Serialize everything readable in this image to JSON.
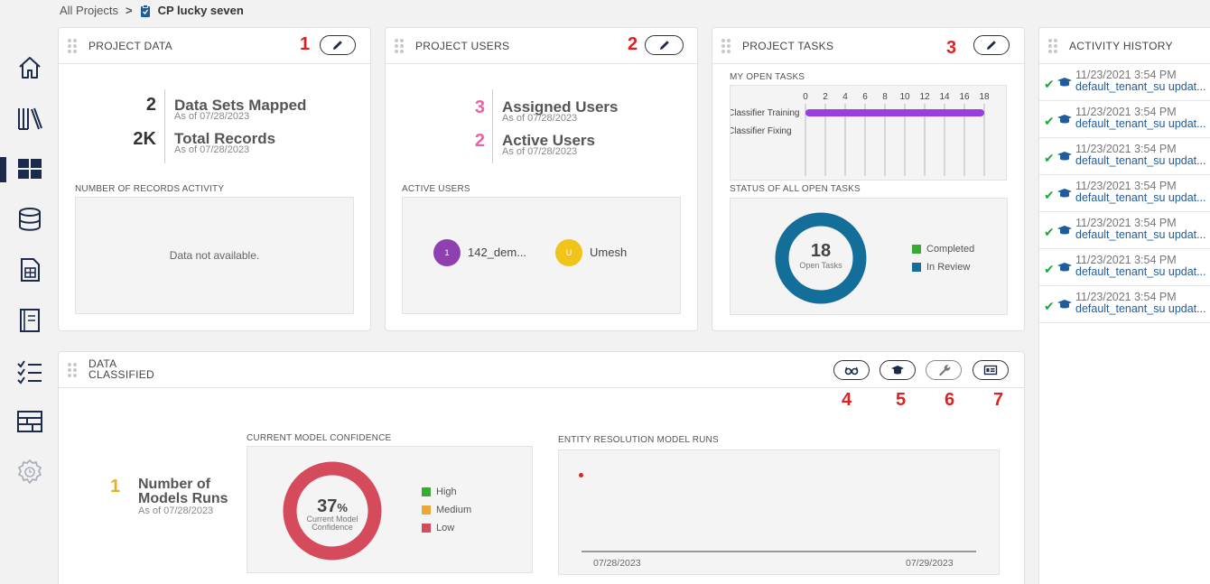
{
  "breadcrumb": {
    "parent": "All Projects",
    "separator": ">",
    "current": "CP lucky seven"
  },
  "project_data": {
    "title": "PROJECT DATA",
    "annotation": "1",
    "stats": [
      {
        "value": "2",
        "label": "Data Sets Mapped",
        "as_of": "As of 07/28/2023"
      },
      {
        "value": "2K",
        "label": "Total Records",
        "as_of": "As of 07/28/2023"
      }
    ],
    "activity_label": "NUMBER OF RECORDS ACTIVITY",
    "empty_text": "Data not available."
  },
  "project_users": {
    "title": "PROJECT USERS",
    "annotation": "2",
    "stats": [
      {
        "value": "3",
        "label": "Assigned Users",
        "as_of": "As of 07/28/2023"
      },
      {
        "value": "2",
        "label": "Active Users",
        "as_of": "As of 07/28/2023"
      }
    ],
    "active_label": "ACTIVE USERS",
    "users": [
      {
        "initial": "1",
        "name": "142_dem...",
        "color": "#8e3fb0"
      },
      {
        "initial": "U",
        "name": "Umesh",
        "color": "#f0c419"
      }
    ]
  },
  "project_tasks": {
    "title": "PROJECT TASKS",
    "annotation": "3",
    "my_open_label": "MY OPEN TASKS",
    "ticks": [
      "0",
      "2",
      "4",
      "6",
      "8",
      "10",
      "12",
      "14",
      "16",
      "18"
    ],
    "rows": [
      "Classifier Training",
      "Classifier Fixing"
    ],
    "training_value": 18,
    "axis_max": 18,
    "status_label": "STATUS OF ALL OPEN TASKS",
    "open_count": "18",
    "open_label": "Open Tasks",
    "legend": [
      {
        "label": "Completed",
        "color": "#3aaa35"
      },
      {
        "label": "In Review",
        "color": "#136f9a"
      }
    ]
  },
  "activity_history": {
    "title": "ACTIVITY HISTORY",
    "items": [
      {
        "time": "11/23/2021 3:54 PM",
        "text": "default_tenant_su updat..."
      },
      {
        "time": "11/23/2021 3:54 PM",
        "text": "default_tenant_su updat..."
      },
      {
        "time": "11/23/2021 3:54 PM",
        "text": "default_tenant_su updat..."
      },
      {
        "time": "11/23/2021 3:54 PM",
        "text": "default_tenant_su updat..."
      },
      {
        "time": "11/23/2021 3:54 PM",
        "text": "default_tenant_su updat..."
      },
      {
        "time": "11/23/2021 3:54 PM",
        "text": "default_tenant_su updat..."
      },
      {
        "time": "11/23/2021 3:54 PM",
        "text": "default_tenant_su updat..."
      }
    ]
  },
  "data_classified": {
    "title_line1": "DATA",
    "title_line2": "CLASSIFIED",
    "annotations": [
      "4",
      "5",
      "6",
      "7"
    ],
    "models_value": "1",
    "models_label_line1": "Number of",
    "models_label_line2": "Models Runs",
    "models_as_of": "As of 07/28/2023",
    "confidence_label": "CURRENT MODEL CONFIDENCE",
    "confidence_value": "37",
    "confidence_unit": "%",
    "confidence_sub_line1": "Current Model",
    "confidence_sub_line2": "Confidence",
    "confidence_legend": [
      {
        "label": "High",
        "color": "#3aaa35"
      },
      {
        "label": "Medium",
        "color": "#eda63a"
      },
      {
        "label": "Low",
        "color": "#d64b5c"
      }
    ],
    "er_label": "ENTITY RESOLUTION MODEL RUNS",
    "er_dates": [
      "07/28/2023",
      "07/29/2023"
    ]
  },
  "colors": {
    "annotation_red": "#e02020",
    "pink": "#ef5fa7",
    "gold": "#e8b020",
    "bar_purple": "#9b3ee0",
    "donut_blue": "#136f9a",
    "donut_red": "#d64b5c",
    "nav_dark": "#1d2b4a"
  },
  "icons": [
    "home-icon",
    "library-icon",
    "dashboard-icon",
    "database-icon",
    "spreadsheet-icon",
    "notebook-icon",
    "checklist-icon",
    "table-icon",
    "settings-clock-icon",
    "pencil-icon",
    "glasses-icon",
    "graduation-cap-icon",
    "wrench-icon",
    "id-card-icon",
    "checkmark-icon",
    "clipboard-icon"
  ]
}
